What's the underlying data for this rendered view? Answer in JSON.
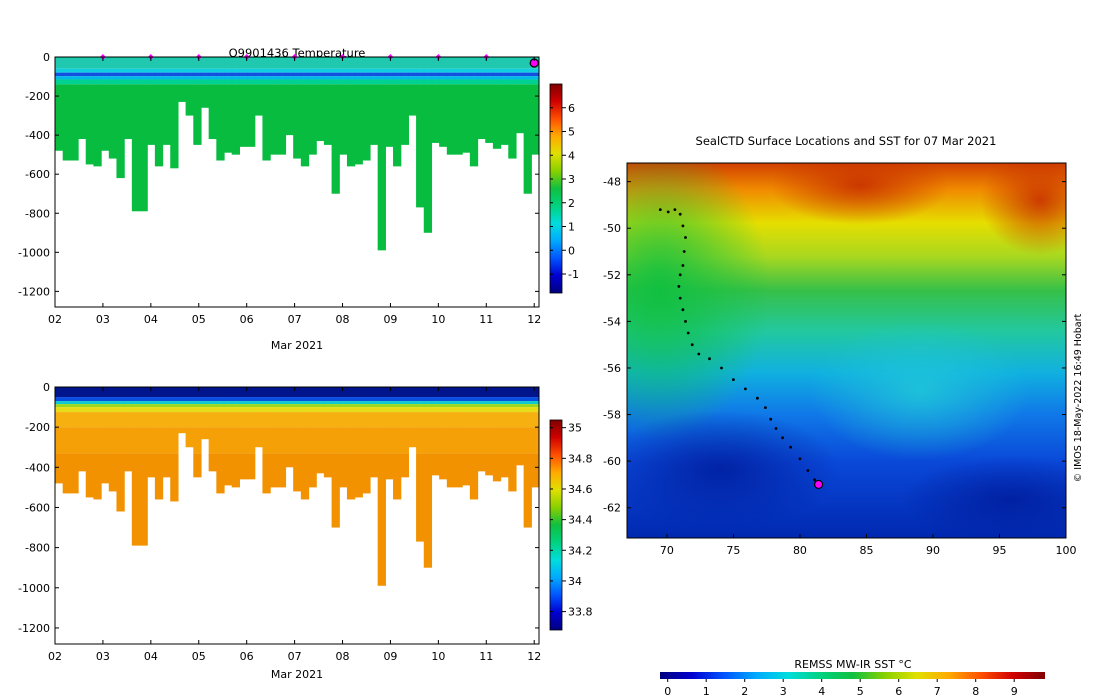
{
  "chart_data": [
    {
      "type": "heatmap",
      "title": "Q9901436  Temperature",
      "xlabel": "Mar 2021",
      "ylabel": "",
      "x_ticks": [
        "02",
        "03",
        "04",
        "05",
        "06",
        "07",
        "08",
        "09",
        "10",
        "11",
        "12"
      ],
      "y_ticks": [
        "0",
        "-200",
        "-400",
        "-600",
        "-800",
        "-1000",
        "-1200"
      ],
      "ylim": [
        -1280,
        0
      ],
      "profile_bottom_depths": [
        480,
        530,
        530,
        420,
        550,
        560,
        480,
        520,
        620,
        420,
        790,
        790,
        450,
        560,
        450,
        570,
        230,
        300,
        450,
        260,
        420,
        530,
        490,
        500,
        460,
        460,
        300,
        530,
        500,
        500,
        400,
        520,
        560,
        500,
        430,
        450,
        700,
        500,
        560,
        550,
        530,
        450,
        990,
        460,
        560,
        450,
        300,
        770,
        900,
        440,
        460,
        500,
        500,
        490,
        560,
        420,
        440,
        470,
        450,
        520,
        390,
        700,
        500
      ],
      "colorbar": {
        "ticks": [
          "-1",
          "0",
          "1",
          "2",
          "3",
          "4",
          "5",
          "6"
        ],
        "range": [
          -1.8,
          7
        ],
        "colors": [
          "#000080",
          "#0000d0",
          "#0055ff",
          "#00aaff",
          "#00dddd",
          "#00d27f",
          "#10c040",
          "#88d000",
          "#e0e000",
          "#ffaa00",
          "#ff5000",
          "#d00000",
          "#800000"
        ]
      },
      "profile_marker_color": "#ff00ff"
    },
    {
      "type": "heatmap",
      "title": "",
      "xlabel": "Mar 2021",
      "ylabel": "",
      "x_ticks": [
        "02",
        "03",
        "04",
        "05",
        "06",
        "07",
        "08",
        "09",
        "10",
        "11",
        "12"
      ],
      "y_ticks": [
        "0",
        "-200",
        "-400",
        "-600",
        "-800",
        "-1000",
        "-1200"
      ],
      "ylim": [
        -1280,
        0
      ],
      "colorbar": {
        "ticks": [
          "33.8",
          "34",
          "34.2",
          "34.4",
          "34.6",
          "34.8",
          "35"
        ],
        "range": [
          33.68,
          35.05
        ],
        "colors": [
          "#000080",
          "#0000d0",
          "#0055ff",
          "#00aaff",
          "#00dddd",
          "#00d27f",
          "#10c040",
          "#88d000",
          "#e0e000",
          "#ffaa00",
          "#ff5000",
          "#d00000",
          "#800000"
        ]
      }
    },
    {
      "type": "heatmap",
      "title": "SealCTD Surface Locations and SST for 07 Mar 2021",
      "x_ticks": [
        "70",
        "75",
        "80",
        "85",
        "90",
        "95",
        "100"
      ],
      "y_ticks": [
        "-48",
        "-50",
        "-52",
        "-54",
        "-56",
        "-58",
        "-60",
        "-62"
      ],
      "xlim": [
        67,
        100
      ],
      "ylim": [
        -63.3,
        -47.2
      ],
      "track": [
        [
          69.5,
          -49.2
        ],
        [
          70.1,
          -49.3
        ],
        [
          70.6,
          -49.2
        ],
        [
          71.0,
          -49.4
        ],
        [
          71.2,
          -49.9
        ],
        [
          71.4,
          -50.4
        ],
        [
          71.3,
          -51.0
        ],
        [
          71.2,
          -51.6
        ],
        [
          71.0,
          -52.0
        ],
        [
          70.9,
          -52.5
        ],
        [
          71.0,
          -53.0
        ],
        [
          71.2,
          -53.5
        ],
        [
          71.4,
          -54.0
        ],
        [
          71.6,
          -54.5
        ],
        [
          71.9,
          -55.0
        ],
        [
          72.4,
          -55.4
        ],
        [
          73.2,
          -55.6
        ],
        [
          74.1,
          -56.0
        ],
        [
          75.0,
          -56.5
        ],
        [
          75.9,
          -56.9
        ],
        [
          76.8,
          -57.3
        ],
        [
          77.4,
          -57.7
        ],
        [
          77.8,
          -58.2
        ],
        [
          78.2,
          -58.6
        ],
        [
          78.7,
          -59.0
        ],
        [
          79.3,
          -59.4
        ],
        [
          80.0,
          -59.9
        ],
        [
          80.6,
          -60.4
        ],
        [
          81.1,
          -60.8
        ],
        [
          81.4,
          -61.0
        ]
      ],
      "current_position": [
        81.4,
        -61.0
      ],
      "colorbar": {
        "label": "REMSS MW-IR SST °C",
        "ticks": [
          "0",
          "1",
          "2",
          "3",
          "4",
          "5",
          "6",
          "7",
          "8",
          "9"
        ],
        "range": [
          -0.2,
          9.8
        ],
        "colors": [
          "#000080",
          "#0000d0",
          "#0055ff",
          "#00aaff",
          "#00dddd",
          "#00d27f",
          "#10c040",
          "#88d000",
          "#e0e000",
          "#ffaa00",
          "#ff5000",
          "#d00000",
          "#800000"
        ]
      }
    }
  ],
  "credit": "© IMOS 18-May-2022 16:49 Hobart"
}
